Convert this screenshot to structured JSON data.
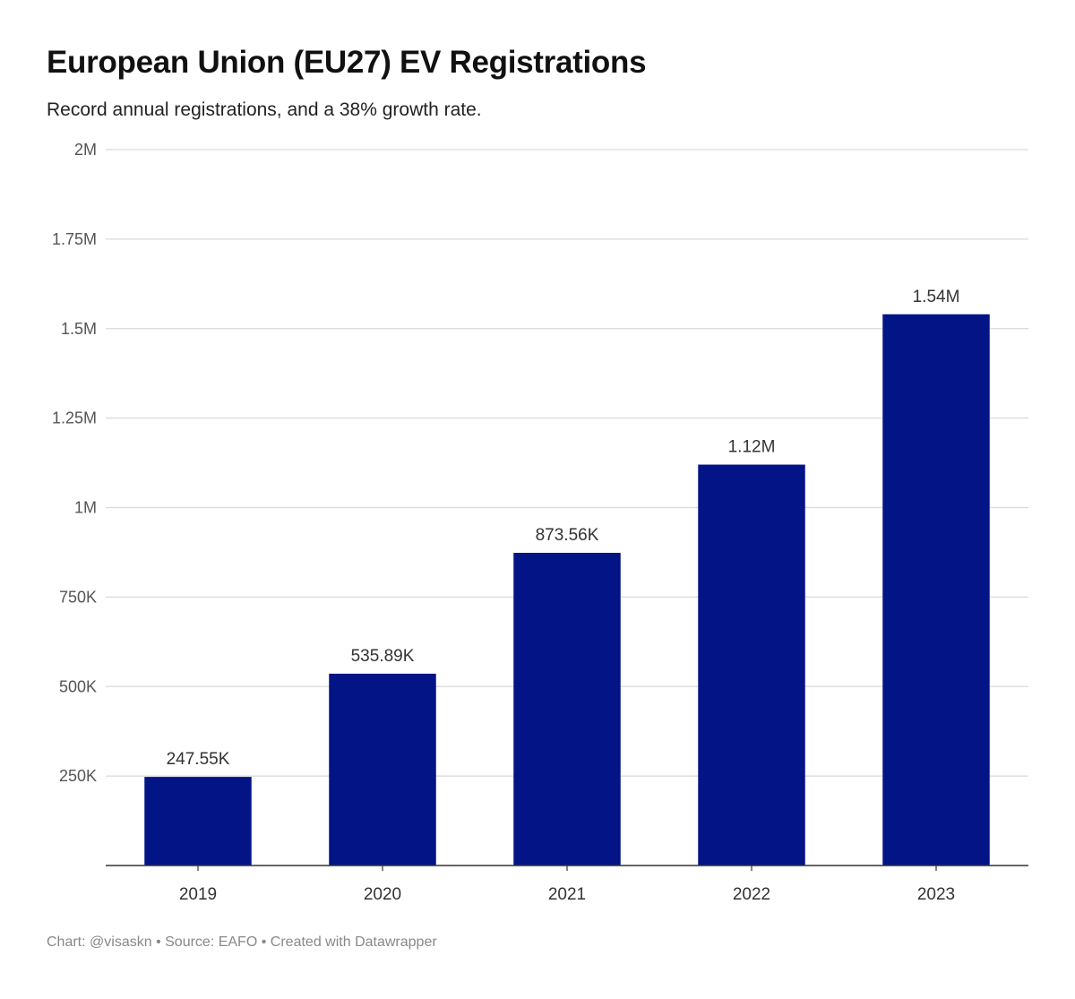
{
  "title": "European Union (EU27) EV Registrations",
  "subtitle": "Record annual registrations, and a 38% growth rate.",
  "footer": {
    "credit": "Chart: @visaskn",
    "source": "Source: EAFO",
    "tool": "Created with Datawrapper",
    "separator": "•"
  },
  "colors": {
    "bar": "#031486",
    "grid": "#d9d9d9",
    "axis": "#333333"
  },
  "chart_data": {
    "type": "bar",
    "title": "European Union (EU27) EV Registrations",
    "subtitle": "Record annual registrations, and a 38% growth rate.",
    "xlabel": "",
    "ylabel": "",
    "categories": [
      "2019",
      "2020",
      "2021",
      "2022",
      "2023"
    ],
    "values": [
      247550,
      535890,
      873560,
      1120000,
      1540000
    ],
    "data_labels": [
      "247.55K",
      "535.89K",
      "873.56K",
      "1.12M",
      "1.54M"
    ],
    "ylim": [
      0,
      2000000
    ],
    "yticks": [
      250000,
      500000,
      750000,
      1000000,
      1250000,
      1500000,
      1750000,
      2000000
    ],
    "ytick_labels": [
      "250K",
      "500K",
      "750K",
      "1M",
      "1.25M",
      "1.5M",
      "1.75M",
      "2M"
    ],
    "grid": true,
    "legend": "none"
  }
}
